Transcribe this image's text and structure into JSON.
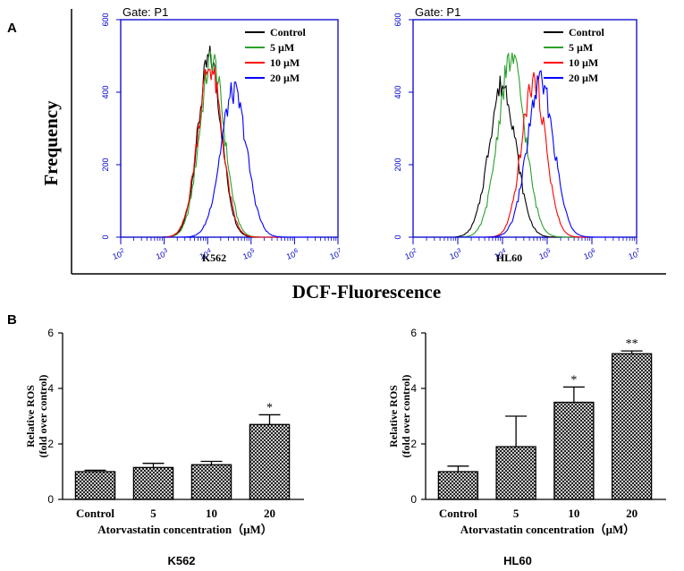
{
  "panel_labels": {
    "a": "A",
    "b": "B"
  },
  "panel_a": {
    "ylabel": "Frequency",
    "xlabel": "DCF-Fluorescence"
  },
  "colors": {
    "control": "#000000",
    "5uM": "#2ca02c",
    "10uM": "#ff0000",
    "20uM": "#0000ff",
    "axis_blue": "#0000cc"
  },
  "chart_data": [
    {
      "type": "line",
      "title": "Gate: P1",
      "cell_line": "K562",
      "xscale": "log",
      "xlim_exp": [
        2,
        7
      ],
      "x_tick_labels": [
        "10^2",
        "10^3",
        "10^4",
        "10^5",
        "10^6",
        "10^7"
      ],
      "ylim": [
        0,
        600
      ],
      "y_ticks": [
        0,
        200,
        400,
        600
      ],
      "series": [
        {
          "name": "Control",
          "peak_log": 4.05,
          "peak": 490,
          "sigma": 0.27
        },
        {
          "name": "5 µM",
          "peak_log": 4.1,
          "peak": 490,
          "sigma": 0.28
        },
        {
          "name": "10 µM",
          "peak_log": 4.05,
          "peak": 470,
          "sigma": 0.28
        },
        {
          "name": "20 µM",
          "peak_log": 4.6,
          "peak": 400,
          "sigma": 0.3
        }
      ]
    },
    {
      "type": "line",
      "title": "Gate: P1",
      "cell_line": "HL60",
      "xscale": "log",
      "xlim_exp": [
        2,
        7
      ],
      "x_tick_labels": [
        "10^2",
        "10^3",
        "10^4",
        "10^5",
        "10^6",
        "10^7"
      ],
      "ylim": [
        0,
        600
      ],
      "y_ticks": [
        0,
        200,
        400,
        600
      ],
      "series": [
        {
          "name": "Control",
          "peak_log": 4.0,
          "peak": 420,
          "sigma": 0.3
        },
        {
          "name": "5 µM",
          "peak_log": 4.2,
          "peak": 490,
          "sigma": 0.3
        },
        {
          "name": "10 µM",
          "peak_log": 4.7,
          "peak": 430,
          "sigma": 0.27
        },
        {
          "name": "20 µM",
          "peak_log": 4.85,
          "peak": 425,
          "sigma": 0.3
        }
      ]
    },
    {
      "type": "bar",
      "cell_line": "K562",
      "categories": [
        "Control",
        "5",
        "10",
        "20"
      ],
      "values": [
        1.0,
        1.15,
        1.25,
        2.7
      ],
      "errors": [
        0.05,
        0.15,
        0.12,
        0.35
      ],
      "significance": [
        "",
        "",
        "",
        "*"
      ],
      "ylabel_line1": "Relative ROS",
      "ylabel_line2": "(fold over control)",
      "xlabel": "Atorvastatin concentration（μM）",
      "ylim": [
        0,
        6
      ],
      "y_ticks": [
        0,
        2,
        4,
        6
      ]
    },
    {
      "type": "bar",
      "cell_line": "HL60",
      "categories": [
        "Control",
        "5",
        "10",
        "20"
      ],
      "values": [
        1.0,
        1.9,
        3.5,
        5.25
      ],
      "errors": [
        0.2,
        1.1,
        0.55,
        0.1
      ],
      "significance": [
        "",
        "",
        "*",
        "**"
      ],
      "ylabel_line1": "Relative ROS",
      "ylabel_line2": "(fold over control)",
      "xlabel": "Atorvastatin concentration（μM）",
      "ylim": [
        0,
        6
      ],
      "y_ticks": [
        0,
        2,
        4,
        6
      ]
    }
  ]
}
